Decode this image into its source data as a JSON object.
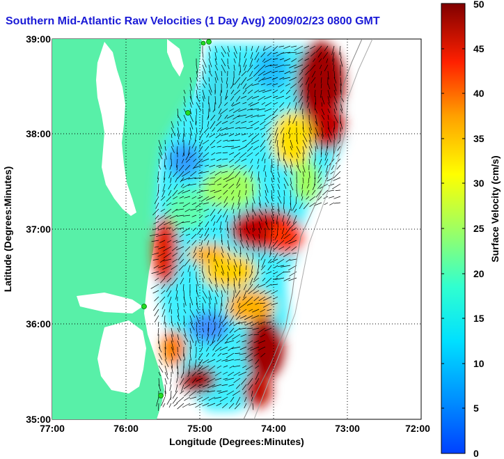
{
  "title": "Southern Mid-Atlantic Raw Velocities (1 Day Avg) 2009/02/23 0800 GMT",
  "xaxis": {
    "label": "Longitude (Degrees:Minutes)",
    "ticks": [
      "77:00",
      "76:00",
      "75:00",
      "74:00",
      "73:00",
      "72:00"
    ],
    "range": [
      -77,
      -72
    ]
  },
  "yaxis": {
    "label": "Latitude (Degrees:Minutes)",
    "ticks": [
      "39:00",
      "38:00",
      "37:00",
      "36:00",
      "35:00"
    ],
    "range": [
      35,
      39
    ]
  },
  "colorbar": {
    "label": "Surface Velocity (cm/s)",
    "ticks": [
      "0",
      "5",
      "10",
      "15",
      "20",
      "25",
      "30",
      "35",
      "40",
      "45",
      "50"
    ],
    "range": [
      0,
      50
    ]
  },
  "colors": {
    "land": "#58f0a8",
    "title": "#1a1ad6",
    "station": "#22dd22"
  }
}
